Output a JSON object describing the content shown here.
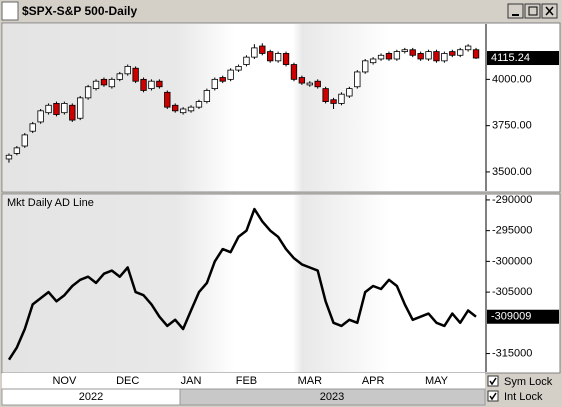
{
  "chart_data": [
    {
      "type": "candlestick",
      "title": "$SPX-S&P 500-Daily",
      "up_color": "#ffffff",
      "down_color": "#cc0000",
      "open": [
        3570,
        3600,
        3640,
        3720,
        3770,
        3820,
        3870,
        3820,
        3860,
        3790,
        3900,
        3950,
        4000,
        3960,
        4000,
        4030,
        4060,
        4000,
        3950,
        3990,
        3930,
        3860,
        3820,
        3830,
        3850,
        3880,
        3950,
        4010,
        4000,
        4050,
        4080,
        4120,
        4180,
        4150,
        4100,
        4140,
        4080,
        4010,
        3970,
        3990,
        3950,
        3890,
        3870,
        3910,
        3960,
        4040,
        4090,
        4110,
        4140,
        4110,
        4150,
        4160,
        4140,
        4110,
        4150,
        4100,
        4150,
        4130,
        4160,
        4160
      ],
      "high": [
        3600,
        3640,
        3710,
        3770,
        3840,
        3870,
        3880,
        3880,
        3870,
        3910,
        3970,
        4000,
        4010,
        4010,
        4040,
        4080,
        4070,
        4010,
        4000,
        4000,
        3940,
        3870,
        3850,
        3860,
        3890,
        3950,
        4010,
        4020,
        4060,
        4080,
        4130,
        4190,
        4195,
        4160,
        4150,
        4150,
        4090,
        4020,
        3990,
        4000,
        3960,
        3900,
        3930,
        3960,
        4050,
        4110,
        4120,
        4140,
        4150,
        4160,
        4170,
        4170,
        4150,
        4160,
        4160,
        4150,
        4160,
        4170,
        4190,
        4170
      ],
      "low": [
        3550,
        3590,
        3630,
        3710,
        3760,
        3810,
        3800,
        3810,
        3770,
        3780,
        3890,
        3940,
        3960,
        3950,
        3990,
        4020,
        3980,
        3930,
        3940,
        3950,
        3840,
        3820,
        3810,
        3820,
        3840,
        3870,
        3940,
        3980,
        3990,
        4040,
        4070,
        4110,
        4130,
        4090,
        4090,
        4070,
        3990,
        3970,
        3960,
        3950,
        3870,
        3840,
        3860,
        3900,
        3950,
        4030,
        4080,
        4100,
        4100,
        4100,
        4140,
        4120,
        4100,
        4100,
        4090,
        4090,
        4120,
        4120,
        4150,
        4110
      ],
      "close": [
        3590,
        3630,
        3700,
        3760,
        3830,
        3860,
        3810,
        3870,
        3780,
        3900,
        3960,
        3990,
        3970,
        4000,
        4030,
        4070,
        3990,
        3940,
        3990,
        3960,
        3850,
        3830,
        3840,
        3850,
        3880,
        3940,
        4000,
        3990,
        4050,
        4070,
        4120,
        4170,
        4140,
        4100,
        4140,
        4080,
        4000,
        3980,
        3980,
        3960,
        3880,
        3870,
        3920,
        3950,
        4040,
        4100,
        4110,
        4130,
        4110,
        4150,
        4160,
        4130,
        4110,
        4150,
        4100,
        4140,
        4130,
        4160,
        4180,
        4115.24
      ],
      "ylim": [
        3397,
        4299
      ],
      "yticks": [
        {
          "value": 3500,
          "label": "3500.00"
        },
        {
          "value": 3750,
          "label": "3750.00"
        },
        {
          "value": 4000,
          "label": "4000.00"
        }
      ]
    },
    {
      "type": "line",
      "title": "Mkt Daily AD Line",
      "color": "#000000",
      "categories": [
        null,
        null,
        null,
        null,
        null,
        null,
        null,
        "NOV",
        null,
        null,
        null,
        null,
        null,
        null,
        null,
        "DEC",
        null,
        null,
        null,
        null,
        null,
        null,
        null,
        "JAN",
        null,
        null,
        null,
        null,
        null,
        null,
        "FEB",
        null,
        null,
        null,
        null,
        null,
        null,
        null,
        "MAR",
        null,
        null,
        null,
        null,
        null,
        null,
        null,
        "APR",
        null,
        null,
        null,
        null,
        null,
        null,
        null,
        "MAY",
        null,
        null,
        null,
        null,
        null
      ],
      "values": [
        -316000,
        -314000,
        -311000,
        -307000,
        -306000,
        -305000,
        -306500,
        -305500,
        -304000,
        -303000,
        -302500,
        -303500,
        -302000,
        -301500,
        -302500,
        -301000,
        -305000,
        -305500,
        -307000,
        -309000,
        -310500,
        -309500,
        -311000,
        -308000,
        -305000,
        -303500,
        -300000,
        -298000,
        -298500,
        -296000,
        -295000,
        -291500,
        -293500,
        -295000,
        -296000,
        -298000,
        -299500,
        -300500,
        -301000,
        -301500,
        -306500,
        -310000,
        -310500,
        -309500,
        -310000,
        -305000,
        -304000,
        -304500,
        -303000,
        -304000,
        -307000,
        -309500,
        -309000,
        -308500,
        -310000,
        -310500,
        -308500,
        -310000,
        -308000,
        -309009
      ],
      "ylim": [
        -318000,
        -289200
      ],
      "yticks": [
        -290000,
        -295000,
        -300000,
        -305000,
        -315000
      ],
      "year_labels": [
        "2022",
        "2023"
      ]
    }
  ],
  "controls": [
    "Sym Lock",
    "Int Lock"
  ]
}
